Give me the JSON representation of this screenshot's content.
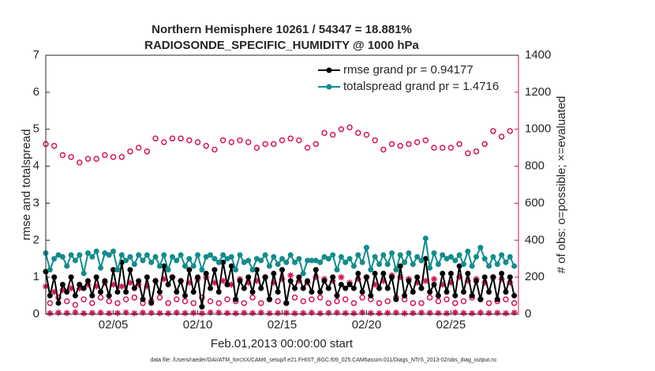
{
  "chart_data": {
    "type": "line",
    "title": "Northern Hemisphere 10261 / 54347 = 18.881%",
    "subtitle": "RADIOSONDE_SPECIFIC_HUMIDITY @ 1000 hPa",
    "xlabel": "Feb.01,2013 00:00:00 start",
    "ylabel": "rmse and totalspread",
    "y2label": "# of obs: o=possible; ×=evaluated",
    "footnote": "data file: /Users/raeder/DAI/ATM_forcXX/CAM6_setup/f.e21.FHIST_BGC.f09_025.CAM6assim.011/Diags_NTrS_2013-02/obs_diag_output.nc",
    "xlim": [
      0,
      28
    ],
    "xticks": [
      {
        "value": 4,
        "label": "02/05"
      },
      {
        "value": 9,
        "label": "02/10"
      },
      {
        "value": 14,
        "label": "02/15"
      },
      {
        "value": 19,
        "label": "02/20"
      },
      {
        "value": 24,
        "label": "02/25"
      }
    ],
    "ylim": [
      0,
      7
    ],
    "yticks": [
      0,
      1,
      2,
      3,
      4,
      5,
      6,
      7
    ],
    "y2lim": [
      0,
      1400
    ],
    "y2ticks": [
      0,
      200,
      400,
      600,
      800,
      1000,
      1200,
      1400
    ],
    "y2color": "#d4145a",
    "grid": false,
    "legend": "upper-right",
    "legend_text_color": "#0044ff",
    "x": [
      0,
      0.25,
      0.5,
      0.75,
      1,
      1.25,
      1.5,
      1.75,
      2,
      2.25,
      2.5,
      2.75,
      3,
      3.25,
      3.5,
      3.75,
      4,
      4.25,
      4.5,
      4.75,
      5,
      5.25,
      5.5,
      5.75,
      6,
      6.25,
      6.5,
      6.75,
      7,
      7.25,
      7.5,
      7.75,
      8,
      8.25,
      8.5,
      8.75,
      9,
      9.25,
      9.5,
      9.75,
      10,
      10.25,
      10.5,
      10.75,
      11,
      11.25,
      11.5,
      11.75,
      12,
      12.25,
      12.5,
      12.75,
      13,
      13.25,
      13.5,
      13.75,
      14,
      14.25,
      14.5,
      14.75,
      15,
      15.25,
      15.5,
      15.75,
      16,
      16.25,
      16.5,
      16.75,
      17,
      17.25,
      17.5,
      17.75,
      18,
      18.25,
      18.5,
      18.75,
      19,
      19.25,
      19.5,
      19.75,
      20,
      20.25,
      20.5,
      20.75,
      21,
      21.25,
      21.5,
      21.75,
      22,
      22.25,
      22.5,
      22.75,
      23,
      23.25,
      23.5,
      23.75,
      24,
      24.25,
      24.5,
      24.75,
      25,
      25.25,
      25.5,
      25.75,
      26,
      26.25,
      26.5,
      26.75,
      27,
      27.25,
      27.5,
      27.75
    ],
    "series": [
      {
        "name": "rmse grand pr = 0.94177",
        "color": "#000000",
        "marker": "filled-circle",
        "line": true,
        "values": [
          1.15,
          0.5,
          1.0,
          0.3,
          0.8,
          0.6,
          1.0,
          0.5,
          0.8,
          0.7,
          0.9,
          0.5,
          1.0,
          0.6,
          0.9,
          0.5,
          1.2,
          0.6,
          1.4,
          0.6,
          1.2,
          0.7,
          0.9,
          0.4,
          1.0,
          0.3,
          0.9,
          0.6,
          1.3,
          0.8,
          1.0,
          0.6,
          0.9,
          0.5,
          1.2,
          0.6,
          1.0,
          0.2,
          1.1,
          0.7,
          1.2,
          0.6,
          1.4,
          0.8,
          1.3,
          0.4,
          0.9,
          0.7,
          1.0,
          0.6,
          1.2,
          0.7,
          1.0,
          0.4,
          1.1,
          0.6,
          1.2,
          0.3,
          0.9,
          0.7,
          1.0,
          0.7,
          0.9,
          0.6,
          1.2,
          0.6,
          0.9,
          0.7,
          1.0,
          0.5,
          0.8,
          0.7,
          0.8,
          0.7,
          1.1,
          0.6,
          1.0,
          0.5,
          1.1,
          0.7,
          1.1,
          0.7,
          1.0,
          0.4,
          1.3,
          0.5,
          0.9,
          0.6,
          1.0,
          0.7,
          1.5,
          0.6,
          0.8,
          0.5,
          1.1,
          0.6,
          1.1,
          0.5,
          1.3,
          0.6,
          1.1,
          0.5,
          0.9,
          0.4,
          1.0,
          0.6,
          1.0,
          0.4,
          1.1,
          0.6,
          1.0,
          0.5
        ]
      },
      {
        "name": "totalspread grand pr = 1.4716",
        "color": "#138c8c",
        "marker": "filled-circle",
        "line": true,
        "values": [
          1.65,
          1.2,
          1.5,
          1.6,
          1.55,
          1.3,
          1.6,
          1.45,
          1.6,
          1.1,
          1.65,
          1.55,
          1.7,
          1.25,
          1.65,
          1.6,
          1.7,
          1.2,
          1.6,
          1.45,
          1.55,
          1.35,
          1.6,
          1.45,
          1.6,
          1.4,
          1.55,
          1.3,
          1.6,
          1.2,
          1.55,
          1.45,
          1.6,
          1.3,
          1.5,
          1.3,
          1.6,
          1.2,
          1.55,
          1.6,
          1.5,
          1.4,
          1.6,
          1.5,
          1.55,
          1.2,
          1.6,
          1.4,
          1.45,
          1.2,
          1.5,
          1.45,
          1.6,
          1.3,
          1.55,
          1.35,
          1.5,
          1.4,
          1.6,
          1.4,
          1.5,
          1.1,
          1.45,
          1.45,
          1.45,
          1.4,
          1.55,
          1.5,
          1.6,
          1.2,
          1.55,
          1.4,
          1.5,
          1.3,
          1.6,
          1.4,
          1.8,
          1.2,
          1.55,
          1.35,
          1.6,
          1.35,
          1.65,
          1.2,
          1.6,
          1.4,
          1.65,
          1.35,
          1.55,
          1.45,
          2.05,
          1.25,
          1.65,
          1.35,
          1.6,
          1.5,
          1.55,
          1.45,
          1.6,
          1.35,
          1.7,
          1.3,
          1.55,
          1.8,
          1.5,
          1.3,
          1.55,
          1.35,
          1.6,
          1.4,
          1.55,
          1.3
        ]
      },
      {
        "color": "#d4145a",
        "marker": "open-circle",
        "line": false,
        "axis": "y2",
        "values": [
          920,
          60,
          910,
          90,
          860,
          70,
          850,
          50,
          820,
          80,
          840,
          60,
          840,
          90,
          860,
          70,
          850,
          60,
          850,
          80,
          880,
          90,
          900,
          60,
          880,
          70,
          950,
          90,
          930,
          60,
          950,
          80,
          950,
          70,
          940,
          60,
          930,
          90,
          910,
          70,
          890,
          60,
          940,
          80,
          930,
          70,
          940,
          60,
          930,
          90,
          900,
          60,
          920,
          80,
          920,
          70,
          940,
          60,
          950,
          90,
          940,
          70,
          900,
          80,
          920,
          90,
          980,
          60,
          970,
          70,
          1000,
          80,
          1010,
          60,
          980,
          90,
          970,
          80,
          940,
          60,
          890,
          70,
          920,
          90,
          910,
          80,
          920,
          60,
          930,
          60,
          940,
          90,
          900,
          70,
          900,
          80,
          900,
          60,
          920,
          70,
          870,
          90,
          880,
          80,
          920,
          60,
          990,
          70,
          960,
          80,
          990,
          60
        ]
      },
      {
        "color": "#d4145a",
        "marker": "asterisk",
        "line": false,
        "axis": "y2",
        "values": [
          150,
          5,
          120,
          8,
          130,
          6,
          140,
          10,
          140,
          5,
          160,
          7,
          150,
          8,
          170,
          5,
          160,
          6,
          150,
          9,
          170,
          5,
          160,
          8,
          150,
          7,
          180,
          6,
          190,
          5,
          200,
          8,
          180,
          6,
          170,
          7,
          190,
          5,
          200,
          9,
          170,
          8,
          180,
          6,
          160,
          5,
          190,
          7,
          170,
          6,
          180,
          8,
          200,
          5,
          170,
          6,
          190,
          7,
          210,
          5,
          180,
          6,
          170,
          8,
          200,
          5,
          190,
          7,
          180,
          8,
          200,
          6,
          170,
          5,
          190,
          9,
          200,
          6,
          160,
          5,
          180,
          7,
          210,
          8,
          200,
          5,
          190,
          6,
          170,
          8,
          180,
          7,
          190,
          6,
          160,
          5,
          170,
          9,
          200,
          6,
          180,
          5,
          190,
          8,
          170,
          6,
          200,
          7,
          190,
          5,
          170,
          8
        ]
      }
    ]
  }
}
